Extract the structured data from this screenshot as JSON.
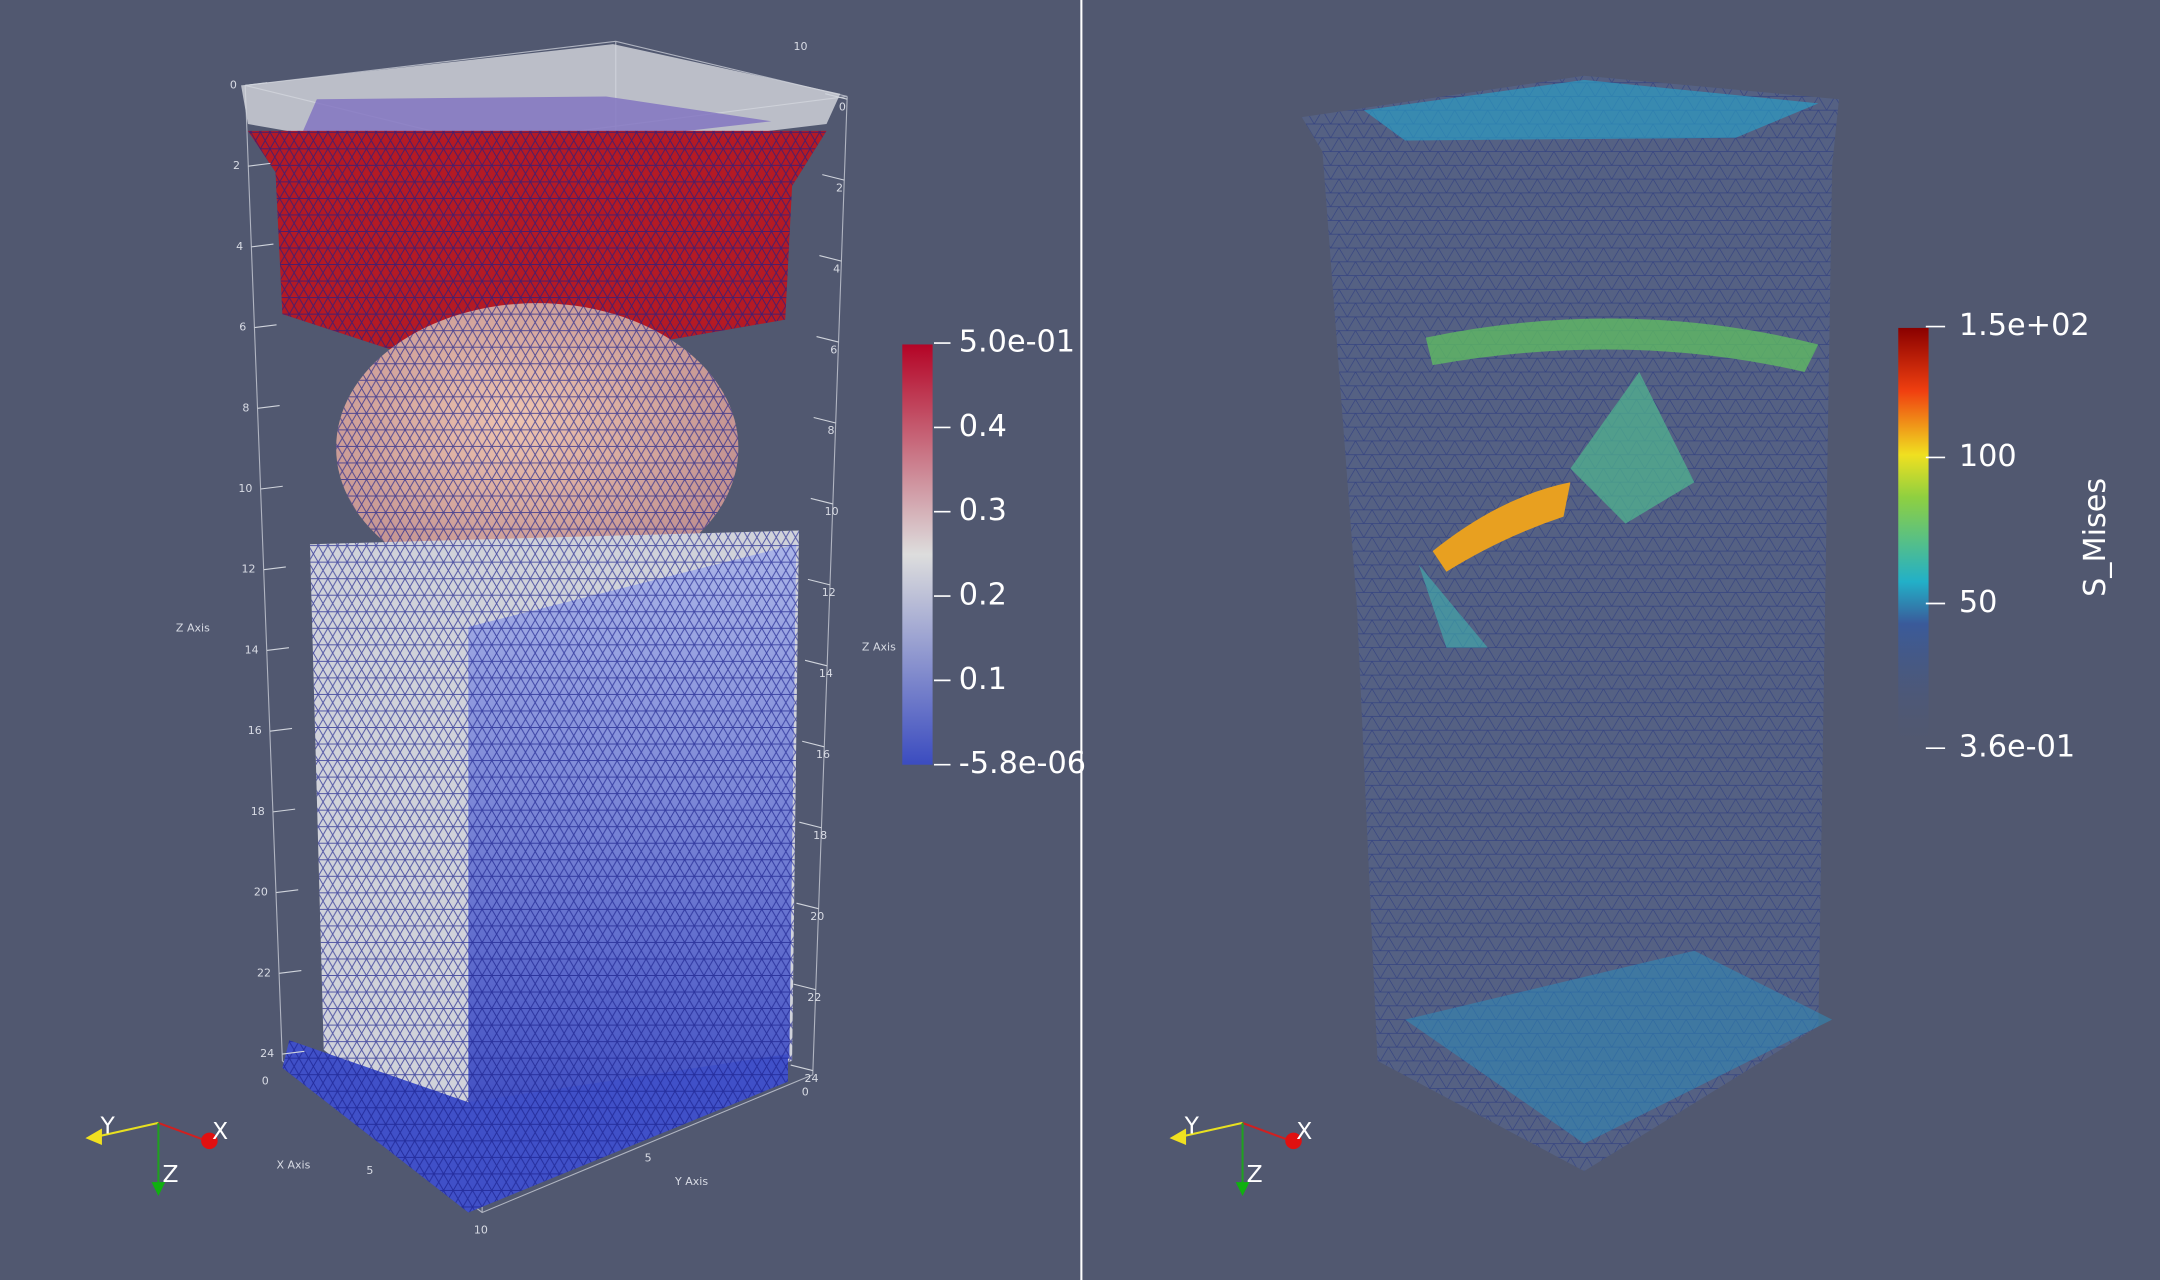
{
  "left_view": {
    "colorbar": {
      "labels": [
        "5.0e-01",
        "0.4",
        "0.3",
        "0.2",
        "0.1",
        "-5.8e-06"
      ]
    },
    "axes_grid": {
      "x_label": "X Axis",
      "y_label": "Y Axis",
      "z_label": "Z Axis",
      "z_ticks": [
        "0",
        "2",
        "4",
        "6",
        "8",
        "10",
        "12",
        "14",
        "16",
        "18",
        "20",
        "22",
        "24"
      ],
      "x_ticks": [
        "0",
        "5",
        "10"
      ],
      "y_ticks": [
        "0",
        "5",
        "10"
      ]
    },
    "orientation_axes": {
      "x": "X",
      "y": "Y",
      "z": "Z"
    }
  },
  "right_view": {
    "colorbar": {
      "title": "S_Mises",
      "labels": [
        "1.5e+02",
        "100",
        "50",
        "3.6e-01"
      ]
    },
    "orientation_axes": {
      "x": "X",
      "y": "Y",
      "z": "Z"
    }
  }
}
